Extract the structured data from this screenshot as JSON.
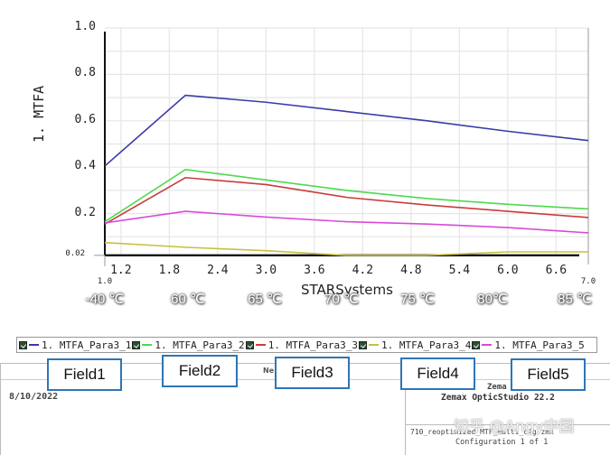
{
  "chart_data": {
    "type": "line",
    "title": "",
    "xlabel": "STARSystems",
    "ylabel": "1. MTFA",
    "xlim": [
      1.0,
      7.0
    ],
    "ylim": [
      0.02,
      1.0
    ],
    "x_ticks": [
      "1.2",
      "1.8",
      "2.4",
      "3.0",
      "3.6",
      "4.2",
      "4.8",
      "5.4",
      "6.0",
      "6.6"
    ],
    "x_end_labels": {
      "min": "1.0",
      "max": "7.0"
    },
    "y_ticks": [
      "1.0",
      "0.8",
      "0.6",
      "0.4",
      "0.2"
    ],
    "y_min_label": "0.02",
    "grid": true,
    "legend_position": "bottom",
    "x": [
      1,
      2,
      3,
      4,
      5,
      6,
      7
    ],
    "categories_annotation": [
      "-40 ℃",
      "60 ℃",
      "65 ℃",
      "70 ℃",
      "75 ℃",
      "80℃",
      "85 ℃"
    ],
    "series": [
      {
        "name": "1. MTFA_Para3_1",
        "color": "#3a3aa8",
        "values": [
          0.405,
          0.71,
          0.68,
          0.64,
          0.6,
          0.555,
          0.515
        ]
      },
      {
        "name": "1. MTFA_Para3_2",
        "color": "#4fd84f",
        "values": [
          0.165,
          0.39,
          0.345,
          0.3,
          0.265,
          0.24,
          0.22
        ]
      },
      {
        "name": "1. MTFA_Para3_3",
        "color": "#c83c3c",
        "values": [
          0.155,
          0.355,
          0.325,
          0.27,
          0.237,
          0.21,
          0.183
        ]
      },
      {
        "name": "1. MTFA_Para3_4",
        "color": "#c8c040",
        "values": [
          0.075,
          0.055,
          0.04,
          0.02,
          0.02,
          0.035,
          0.035
        ]
      },
      {
        "name": "1. MTFA_Para3_5",
        "color": "#d84ad8",
        "values": [
          0.16,
          0.21,
          0.185,
          0.165,
          0.155,
          0.14,
          0.117
        ]
      }
    ]
  },
  "annotations": {
    "fields": [
      "Field1",
      "Field2",
      "Field3",
      "Field4",
      "Field5"
    ]
  },
  "footer": {
    "date": "8/10/2022",
    "new_label": "Ne",
    "zemax_short": "Zema",
    "product": "Zemax OpticStudio 22.2",
    "filename": "710_reoptimized_MTF_multi_cfg.zmx",
    "configuration": "Configuration 1 of 1",
    "watermark": "知乎 @Angy中国"
  }
}
